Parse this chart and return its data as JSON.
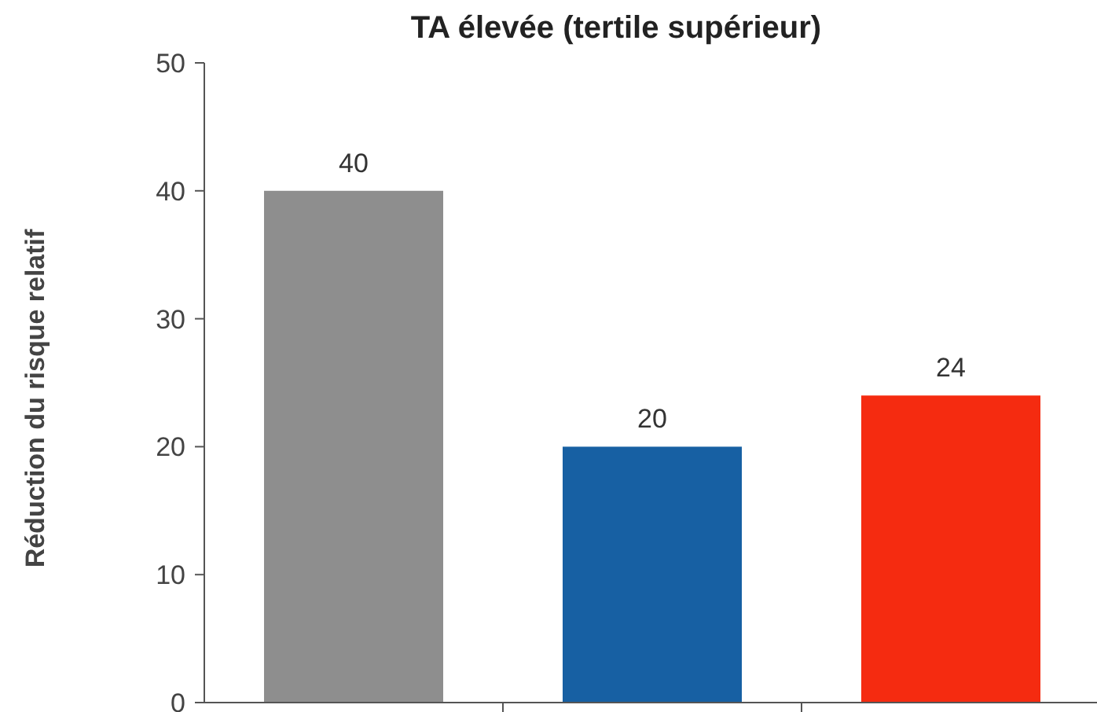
{
  "chart_data": {
    "type": "bar",
    "title": "TA élevée (tertile supérieur)",
    "ylabel": "Réduction du risque relatif",
    "categories": [
      null,
      null,
      null
    ],
    "values": [
      40,
      20,
      24
    ],
    "colors": [
      "#8e8e8e",
      "#1760a3",
      "#f52b10"
    ],
    "ylim": [
      0,
      50
    ],
    "yticks": [
      0,
      10,
      20,
      30,
      40,
      50
    ],
    "data_labels": true,
    "grid": false
  }
}
